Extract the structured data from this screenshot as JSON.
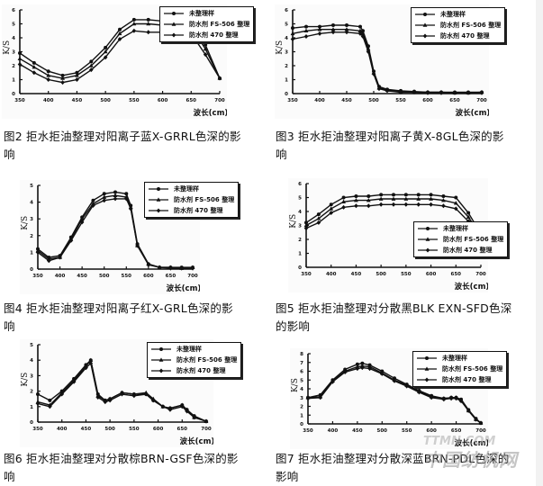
{
  "legend": [
    "未整理样",
    "防水剂 FS-506 整理",
    "防水剂 470 整理"
  ],
  "watermark": {
    "top": "TTMN.COM",
    "bottom": "中国纺机网"
  },
  "figures": [
    {
      "id": "fig2",
      "caption": "图2  拒水拒油整理对阳离子蓝X-GRRL色深的影响",
      "caption_lines": [
        "图2  拒水拒油整理对阳离子蓝X-GRRL色深的影",
        "响"
      ],
      "chart_data": {
        "type": "line",
        "title": "",
        "xlabel": "波长(cm)",
        "ylabel": "K/S",
        "xlim": [
          350,
          700
        ],
        "ylim": [
          0,
          6
        ],
        "xticks": [
          350,
          400,
          450,
          500,
          550,
          600,
          650,
          700
        ],
        "yticks": [
          0,
          1,
          2,
          3,
          4,
          5,
          6
        ],
        "legend_position": "top-right",
        "x": [
          350,
          375,
          400,
          425,
          450,
          475,
          500,
          525,
          550,
          575,
          600,
          625,
          650,
          675,
          700
        ],
        "series": [
          {
            "name": "未整理样",
            "marker": "circle",
            "values": [
              2.9,
              2.2,
              1.6,
              1.3,
              1.5,
              2.3,
              3.3,
              4.6,
              5.3,
              5.3,
              5.2,
              5.2,
              5.1,
              3.5,
              1.1
            ]
          },
          {
            "name": "防水剂 FS-506 整理",
            "marker": "triangle",
            "values": [
              2.5,
              1.9,
              1.3,
              1.1,
              1.3,
              2.0,
              3.0,
              4.3,
              5.0,
              5.0,
              4.9,
              4.9,
              4.8,
              3.2,
              1.1
            ]
          },
          {
            "name": "防水剂 470 整理",
            "marker": "diamond",
            "values": [
              2.1,
              1.5,
              1.0,
              0.8,
              1.0,
              1.7,
              2.6,
              3.9,
              4.5,
              4.4,
              4.4,
              4.4,
              4.3,
              2.8,
              1.1
            ]
          }
        ]
      }
    },
    {
      "id": "fig3",
      "caption_lines": [
        "图3  拒水拒油整理对阳离子黄X-8GL色深的影",
        "响"
      ],
      "chart_data": {
        "type": "line",
        "title": "",
        "xlabel": "波长(cm)",
        "ylabel": "K/S",
        "xlim": [
          350,
          700
        ],
        "ylim": [
          0,
          6
        ],
        "xticks": [
          350,
          400,
          450,
          500,
          550,
          600,
          650,
          700
        ],
        "yticks": [
          0,
          1,
          2,
          3,
          4,
          5,
          6
        ],
        "legend_position": "top-right",
        "x": [
          350,
          375,
          400,
          425,
          450,
          475,
          480,
          490,
          500,
          510,
          525,
          550,
          575,
          600,
          625,
          650,
          675,
          700
        ],
        "series": [
          {
            "name": "未整理样",
            "marker": "circle",
            "values": [
              4.7,
              4.8,
              4.8,
              4.9,
              4.9,
              4.8,
              4.5,
              3.4,
              1.6,
              0.5,
              0.3,
              0.2,
              0.15,
              0.1,
              0.1,
              0.1,
              0.1,
              0.1
            ]
          },
          {
            "name": "防水剂 FS-506 整理",
            "marker": "triangle",
            "values": [
              4.3,
              4.5,
              4.6,
              4.6,
              4.6,
              4.5,
              4.3,
              3.2,
              1.5,
              0.4,
              0.25,
              0.15,
              0.1,
              0.1,
              0.1,
              0.05,
              0.05,
              0.1
            ]
          },
          {
            "name": "防水剂 470 整理",
            "marker": "diamond",
            "values": [
              3.9,
              4.1,
              4.3,
              4.4,
              4.4,
              4.3,
              4.1,
              3.0,
              1.4,
              0.35,
              0.2,
              0.1,
              0.1,
              0.05,
              0.05,
              0.05,
              0.05,
              0.05
            ]
          }
        ]
      }
    },
    {
      "id": "fig4",
      "caption_lines": [
        "图4  拒水拒油整理对阳离子红X-GRL色深的影",
        "响"
      ],
      "chart_data": {
        "type": "line",
        "title": "",
        "xlabel": "波长(cm)",
        "ylabel": "K/S",
        "xlim": [
          350,
          700
        ],
        "ylim": [
          0,
          5
        ],
        "xticks": [
          350,
          400,
          450,
          500,
          550,
          600,
          650,
          700
        ],
        "yticks": [
          0,
          1,
          2,
          3,
          4,
          5
        ],
        "legend_position": "top-right",
        "x": [
          350,
          375,
          400,
          425,
          450,
          475,
          500,
          525,
          550,
          560,
          575,
          600,
          625,
          650,
          675,
          700
        ],
        "series": [
          {
            "name": "未整理样",
            "marker": "circle",
            "values": [
              1.2,
              0.7,
              0.8,
              1.9,
              3.1,
              4.1,
              4.5,
              4.6,
              4.5,
              3.8,
              1.5,
              0.3,
              0.1,
              0.1,
              0.1,
              0.1
            ]
          },
          {
            "name": "防水剂 FS-506 整理",
            "marker": "triangle",
            "values": [
              1.1,
              0.6,
              0.7,
              1.8,
              3.0,
              3.9,
              4.3,
              4.4,
              4.3,
              3.7,
              1.4,
              0.3,
              0.1,
              0.1,
              0.05,
              0.1
            ]
          },
          {
            "name": "防水剂 470 整理",
            "marker": "diamond",
            "values": [
              1.0,
              0.5,
              0.7,
              1.7,
              2.8,
              3.8,
              4.1,
              4.2,
              4.2,
              3.6,
              1.4,
              0.25,
              0.1,
              0.05,
              0.05,
              0.05
            ]
          }
        ]
      }
    },
    {
      "id": "fig5",
      "caption_lines": [
        "图5  拒水拒油整理对分散黑BLK EXN-SFD色深",
        "的影响"
      ],
      "chart_data": {
        "type": "line",
        "title": "",
        "xlabel": "波长(cm)",
        "ylabel": "K/S",
        "xlim": [
          350,
          700
        ],
        "ylim": [
          0,
          6
        ],
        "xticks": [
          350,
          400,
          450,
          500,
          550,
          600,
          650,
          700
        ],
        "yticks": [
          0,
          1,
          2,
          3,
          4,
          5,
          6
        ],
        "legend_position": "bottom-right",
        "x": [
          350,
          375,
          400,
          425,
          450,
          475,
          500,
          525,
          550,
          575,
          600,
          625,
          650,
          675,
          690
        ],
        "series": [
          {
            "name": "未整理样",
            "marker": "circle",
            "values": [
              3.2,
              3.8,
              4.5,
              5.0,
              5.1,
              5.1,
              5.2,
              5.2,
              5.2,
              5.2,
              5.2,
              5.1,
              5.0,
              3.9,
              3.0
            ]
          },
          {
            "name": "防水剂 FS-506 整理",
            "marker": "triangle",
            "values": [
              3.0,
              3.5,
              4.2,
              4.7,
              4.8,
              4.8,
              4.9,
              4.9,
              4.9,
              4.9,
              4.9,
              4.8,
              4.6,
              3.6,
              2.8
            ]
          },
          {
            "name": "防水剂 470 整理",
            "marker": "diamond",
            "values": [
              2.8,
              3.2,
              3.9,
              4.3,
              4.4,
              4.4,
              4.5,
              4.5,
              4.5,
              4.5,
              4.5,
              4.4,
              4.2,
              3.3,
              2.6
            ]
          }
        ]
      }
    },
    {
      "id": "fig6",
      "caption_lines": [
        "图6  拒水拒油整理对分散棕BRN-GSF色深的影",
        "响"
      ],
      "chart_data": {
        "type": "line",
        "title": "",
        "xlabel": "波长(cm)",
        "ylabel": "K/S",
        "xlim": [
          350,
          700
        ],
        "ylim": [
          0,
          5
        ],
        "xticks": [
          350,
          400,
          450,
          500,
          550,
          600,
          650,
          700
        ],
        "yticks": [
          0,
          1,
          2,
          3,
          4,
          5
        ],
        "legend_position": "top-right",
        "x": [
          350,
          375,
          400,
          425,
          450,
          460,
          475,
          490,
          500,
          525,
          550,
          575,
          590,
          610,
          625,
          650,
          660,
          675,
          700
        ],
        "series": [
          {
            "name": "未整理样",
            "marker": "circle",
            "values": [
              1.8,
              1.4,
              2.0,
              2.8,
              3.7,
              4.0,
              1.8,
              1.4,
              1.5,
              1.9,
              1.8,
              1.8,
              1.4,
              1.0,
              0.9,
              1.1,
              0.8,
              0.4,
              0.05
            ]
          },
          {
            "name": "防水剂 FS-506 整理",
            "marker": "triangle",
            "values": [
              1.3,
              1.1,
              1.9,
              2.7,
              3.6,
              4.0,
              1.7,
              1.4,
              1.5,
              1.9,
              1.8,
              1.9,
              1.5,
              1.0,
              0.9,
              1.1,
              0.8,
              0.3,
              0.05
            ]
          },
          {
            "name": "防水剂 470 整理",
            "marker": "diamond",
            "values": [
              1.2,
              1.0,
              1.8,
              2.6,
              3.5,
              3.8,
              1.6,
              1.3,
              1.4,
              1.8,
              1.7,
              1.8,
              1.4,
              1.0,
              0.8,
              1.0,
              0.7,
              0.3,
              0.05
            ]
          }
        ]
      }
    },
    {
      "id": "fig7",
      "caption_lines": [
        "图7  拒水拒油整理对分散深蓝BRN-PDL色深的",
        "影响"
      ],
      "chart_data": {
        "type": "line",
        "title": "",
        "xlabel": "波长(cm)",
        "ylabel": "K/S",
        "xlim": [
          350,
          700
        ],
        "ylim": [
          0,
          8
        ],
        "xticks": [
          350,
          400,
          450,
          500,
          550,
          600,
          650,
          700
        ],
        "yticks": [
          0,
          1,
          2,
          3,
          4,
          5,
          6,
          7,
          8
        ],
        "legend_position": "top-right",
        "x": [
          350,
          375,
          400,
          425,
          450,
          460,
          475,
          500,
          525,
          550,
          575,
          600,
          625,
          640,
          650,
          660,
          675,
          690,
          700
        ],
        "series": [
          {
            "name": "未整理样",
            "marker": "circle",
            "values": [
              3.0,
              3.3,
              5.0,
              6.2,
              6.8,
              6.9,
              6.7,
              6.0,
              5.2,
              4.5,
              3.8,
              3.2,
              2.9,
              3.0,
              3.0,
              2.8,
              1.6,
              0.6,
              0.1
            ]
          },
          {
            "name": "防水剂 FS-506 整理",
            "marker": "triangle",
            "values": [
              3.0,
              3.1,
              4.9,
              6.0,
              6.5,
              6.6,
              6.5,
              5.8,
              5.0,
              4.4,
              3.7,
              3.1,
              2.9,
              3.0,
              3.0,
              2.7,
              1.5,
              0.5,
              0.1
            ]
          },
          {
            "name": "防水剂 470 整理",
            "marker": "diamond",
            "values": [
              2.9,
              3.0,
              4.8,
              5.9,
              6.3,
              6.4,
              6.3,
              5.7,
              4.9,
              4.3,
              3.6,
              3.0,
              2.8,
              2.9,
              2.9,
              2.6,
              1.5,
              0.5,
              0.1
            ]
          }
        ]
      }
    }
  ]
}
